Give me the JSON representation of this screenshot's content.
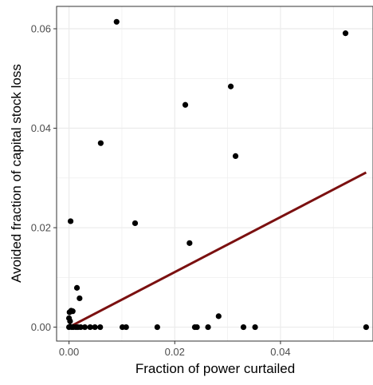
{
  "chart_data": {
    "type": "scatter",
    "title": "",
    "xlabel": "Fraction of power curtailed",
    "ylabel": "Avoided fraction of capital stock loss",
    "xlim": [
      -0.00235,
      0.0575
    ],
    "ylim": [
      -0.0028,
      0.0645
    ],
    "x_ticks": [
      {
        "value": 0.0,
        "label": "0.00"
      },
      {
        "value": 0.02,
        "label": "0.02"
      },
      {
        "value": 0.04,
        "label": "0.04"
      }
    ],
    "y_ticks": [
      {
        "value": 0.0,
        "label": "0.00"
      },
      {
        "value": 0.02,
        "label": "0.02"
      },
      {
        "value": 0.04,
        "label": "0.04"
      },
      {
        "value": 0.06,
        "label": "0.06"
      }
    ],
    "grid": true,
    "points": [
      {
        "x": 0.0,
        "y": 0.0
      },
      {
        "x": 0.0002,
        "y": 0.0001
      },
      {
        "x": 0.0005,
        "y": 0.0
      },
      {
        "x": 0.0008,
        "y": 0.0
      },
      {
        "x": 0.0002,
        "y": 0.0012
      },
      {
        "x": 0.0,
        "y": 0.0018
      },
      {
        "x": 0.0001,
        "y": 0.003
      },
      {
        "x": 0.0004,
        "y": 0.0033
      },
      {
        "x": 0.0007,
        "y": 0.0032
      },
      {
        "x": 0.0003,
        "y": 0.0213
      },
      {
        "x": 0.0013,
        "y": 0.0
      },
      {
        "x": 0.0017,
        "y": 0.0
      },
      {
        "x": 0.0022,
        "y": 0.0
      },
      {
        "x": 0.0015,
        "y": 0.0079
      },
      {
        "x": 0.002,
        "y": 0.0058
      },
      {
        "x": 0.003,
        "y": 0.0
      },
      {
        "x": 0.004,
        "y": 0.0
      },
      {
        "x": 0.0049,
        "y": 0.0
      },
      {
        "x": 0.0059,
        "y": 0.0
      },
      {
        "x": 0.006,
        "y": 0.037
      },
      {
        "x": 0.009,
        "y": 0.0614
      },
      {
        "x": 0.0101,
        "y": 0.0
      },
      {
        "x": 0.0108,
        "y": 0.0
      },
      {
        "x": 0.0125,
        "y": 0.0209
      },
      {
        "x": 0.0167,
        "y": 0.0
      },
      {
        "x": 0.022,
        "y": 0.0447
      },
      {
        "x": 0.0228,
        "y": 0.0169
      },
      {
        "x": 0.0238,
        "y": 0.0
      },
      {
        "x": 0.0242,
        "y": 0.0
      },
      {
        "x": 0.0263,
        "y": 0.0
      },
      {
        "x": 0.0283,
        "y": 0.0022
      },
      {
        "x": 0.0306,
        "y": 0.0484
      },
      {
        "x": 0.0315,
        "y": 0.0344
      },
      {
        "x": 0.033,
        "y": 0.0
      },
      {
        "x": 0.0352,
        "y": 0.0
      },
      {
        "x": 0.0523,
        "y": 0.0591
      },
      {
        "x": 0.0562,
        "y": 0.0
      }
    ],
    "fit_line": {
      "start": {
        "x": 0.0,
        "y": 0.0
      },
      "end": {
        "x": 0.0562,
        "y": 0.0311
      }
    },
    "colors": {
      "points": "#000000",
      "fit_line": "#7b1010",
      "grid": "#ebebeb",
      "panel_border": "#333333",
      "tick": "#333333",
      "tick_label": "#4d4d4d"
    }
  }
}
